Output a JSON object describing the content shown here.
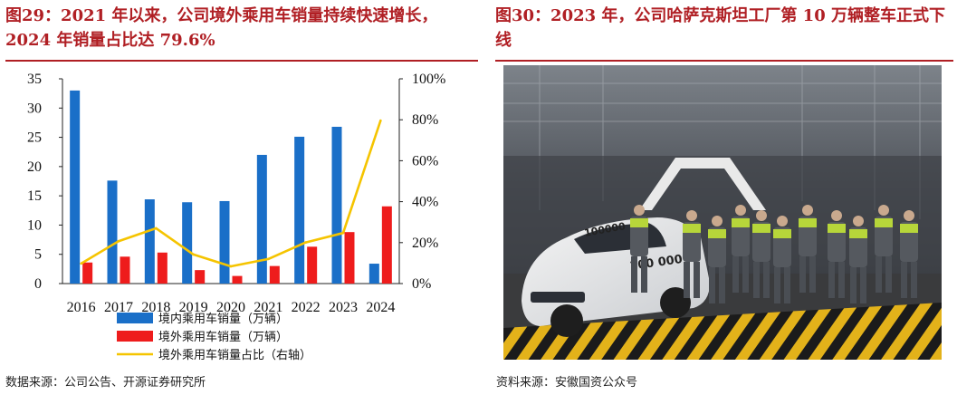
{
  "left_panel": {
    "title": "图29：2021 年以来，公司境外乘用车销量持续快速增长，2024 年销量占比达 79.6%",
    "source": "数据来源：公司公告、开源证券研究所"
  },
  "right_panel": {
    "title": "图30：2023 年，公司哈萨克斯坦工厂第 10 万辆整车正式下线",
    "source": "资料来源：安徽国资公众号",
    "photo_text": {
      "car_door_number": "100000",
      "car_hood_number": "100 000"
    }
  },
  "colors": {
    "title_red": "#b01f24",
    "domestic_blue": "#1a6fc8",
    "overseas_red": "#ee1c1c",
    "share_yellow": "#f5c400"
  },
  "chart_data": {
    "type": "bar",
    "categories": [
      "2016",
      "2017",
      "2018",
      "2019",
      "2020",
      "2021",
      "2022",
      "2023",
      "2024"
    ],
    "series": [
      {
        "name": "境内乘用车销量（万辆）",
        "type": "bar",
        "axis": "left",
        "values": [
          33.0,
          17.6,
          14.4,
          13.9,
          14.1,
          22.0,
          25.1,
          26.8,
          3.4
        ]
      },
      {
        "name": "境外乘用车销量（万辆）",
        "type": "bar",
        "axis": "left",
        "values": [
          3.6,
          4.6,
          5.3,
          2.3,
          1.3,
          3.0,
          6.3,
          8.8,
          13.2
        ]
      },
      {
        "name": "境外乘用车销量占比（右轴）",
        "type": "line",
        "axis": "right",
        "values": [
          9.8,
          20.7,
          27.0,
          14.2,
          8.4,
          12.0,
          20.1,
          24.7,
          79.6
        ]
      }
    ],
    "ylim_left": [
      0,
      35
    ],
    "yticks_left": [
      0,
      5,
      10,
      15,
      20,
      25,
      30,
      35
    ],
    "ylim_right": [
      0,
      100
    ],
    "yticks_right": [
      "0%",
      "20%",
      "40%",
      "60%",
      "80%",
      "100%"
    ],
    "legend_position": "bottom",
    "grid": false
  }
}
